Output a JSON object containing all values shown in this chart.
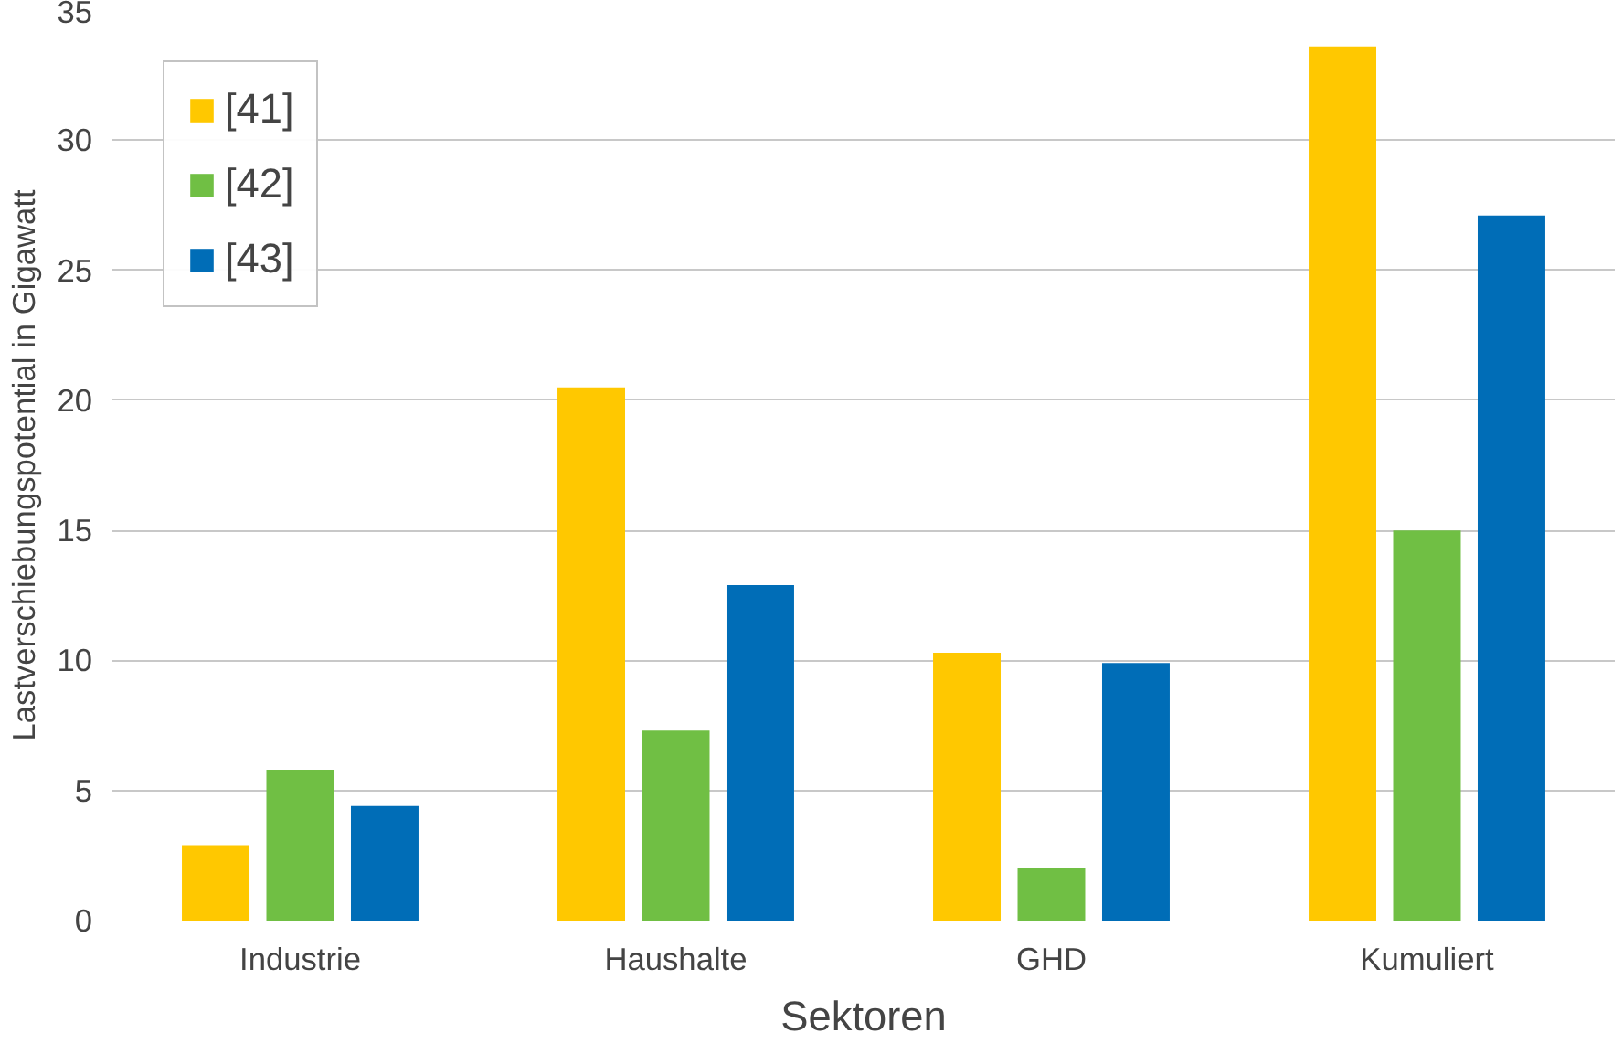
{
  "chart_data": {
    "type": "bar",
    "xlabel": "Sektoren",
    "ylabel": "Lastverschiebungspotential in Gigawatt",
    "categories": [
      "Industrie",
      "Haushalte",
      "GHD",
      "Kumuliert"
    ],
    "series": [
      {
        "name": "[41]",
        "color": "#ffc800",
        "values": [
          2.9,
          20.5,
          10.3,
          33.6
        ]
      },
      {
        "name": "[42]",
        "color": "#70bf44",
        "values": [
          5.8,
          7.3,
          2.0,
          15.0
        ]
      },
      {
        "name": "[43]",
        "color": "#006db7",
        "values": [
          4.4,
          12.9,
          9.9,
          27.1
        ]
      }
    ],
    "ylim": [
      0,
      35
    ],
    "yticks": [
      0,
      5,
      10,
      15,
      20,
      25,
      30,
      35
    ],
    "grid": "y",
    "legend": "top left"
  }
}
